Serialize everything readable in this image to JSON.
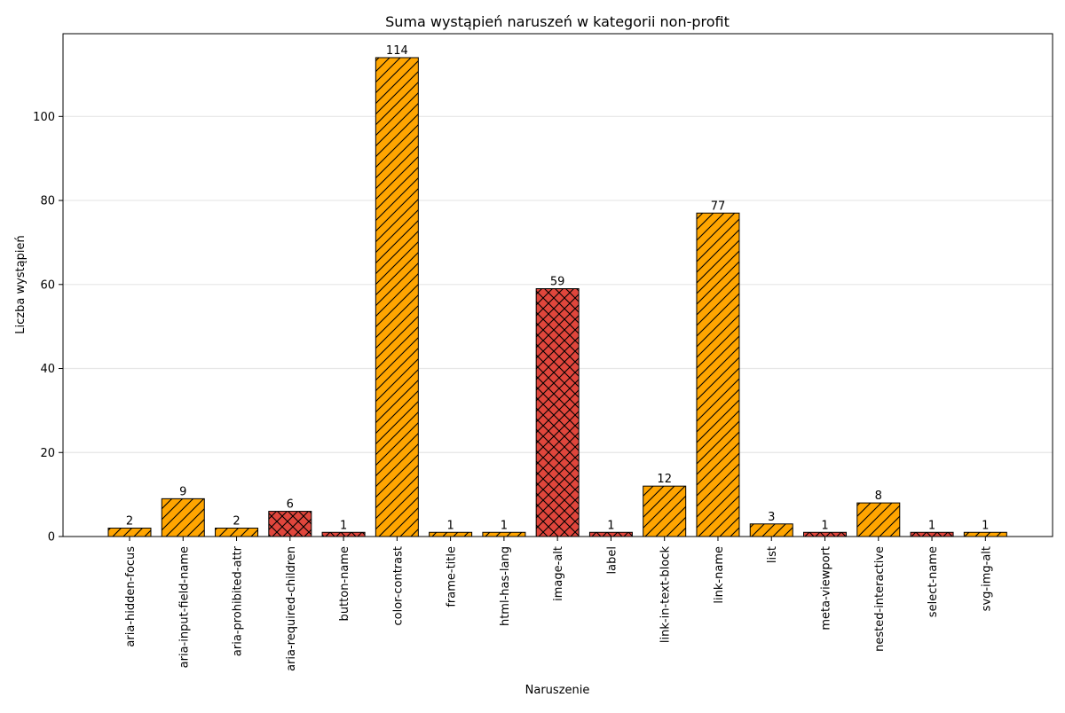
{
  "chart_data": {
    "type": "bar",
    "title": "Suma wystąpień naruszeń w kategorii non-profit",
    "xlabel": "Naruszenie",
    "ylabel": "Liczba wystąpień",
    "ylim": [
      0,
      119.7
    ],
    "yticks": [
      0,
      20,
      40,
      60,
      80,
      100
    ],
    "grid": "horizontal",
    "categories": [
      "aria-hidden-focus",
      "aria-input-field-name",
      "aria-prohibited-attr",
      "aria-required-children",
      "button-name",
      "color-contrast",
      "frame-title",
      "html-has-lang",
      "image-alt",
      "label",
      "link-in-text-block",
      "link-name",
      "list",
      "meta-viewport",
      "nested-interactive",
      "select-name",
      "svg-img-alt"
    ],
    "values": [
      2,
      9,
      2,
      6,
      1,
      114,
      1,
      1,
      59,
      1,
      12,
      77,
      3,
      1,
      8,
      1,
      1
    ],
    "bar_styles": [
      "orange",
      "orange",
      "orange",
      "red",
      "red",
      "orange",
      "orange",
      "orange",
      "red",
      "red",
      "orange",
      "orange",
      "orange",
      "red",
      "orange",
      "red",
      "orange"
    ],
    "colors": {
      "orange": "#FFA500",
      "red": "#E0463C",
      "edge": "#000000",
      "grid": "#E6E6E6"
    },
    "hatches": {
      "orange": "diagonal",
      "red": "crosshatch"
    }
  }
}
